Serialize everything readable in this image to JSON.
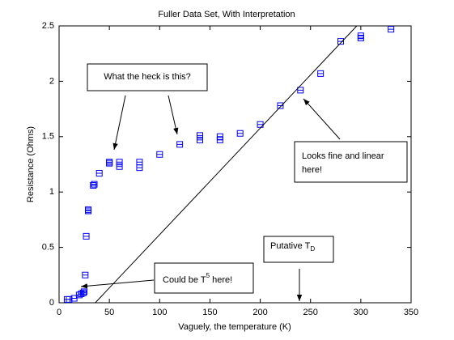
{
  "chart_data": {
    "type": "scatter",
    "title": "Fuller Data Set, With Interpretation",
    "x_label": "Vaguely, the temperature (K)",
    "y_label": "Resistance (Ohms)",
    "xlim": [
      0,
      350
    ],
    "xticks": [
      0,
      50,
      100,
      150,
      200,
      250,
      300,
      350
    ],
    "ylim": [
      0,
      2.5
    ],
    "yticks": [
      0,
      0.5,
      1,
      1.5,
      2,
      2.5
    ],
    "series": [
      {
        "color": "#0000ff",
        "marker": "square",
        "x": [
          8,
          10,
          15,
          20,
          22,
          24,
          25,
          26,
          27,
          29,
          29,
          34,
          35,
          40,
          50,
          50,
          60,
          60,
          80,
          80,
          100,
          120,
          140,
          140,
          160,
          160,
          180,
          200,
          220,
          240,
          260,
          280,
          300,
          300,
          330
        ],
        "values": [
          0.03,
          0.03,
          0.04,
          0.07,
          0.08,
          0.09,
          0.1,
          0.25,
          0.6,
          0.84,
          0.83,
          1.06,
          1.07,
          1.17,
          1.27,
          1.26,
          1.23,
          1.27,
          1.22,
          1.27,
          1.34,
          1.43,
          1.47,
          1.51,
          1.47,
          1.5,
          1.53,
          1.61,
          1.78,
          1.92,
          2.07,
          2.36,
          2.39,
          2.41,
          2.47
        ]
      },
      {
        "color": "#000000",
        "marker": "none",
        "style": "line",
        "x": [
          36,
          296
        ],
        "values": [
          0,
          2.5
        ]
      }
    ],
    "annotations": {
      "heck": "What the heck is this?",
      "linear": [
        "Looks fine and linear",
        "here!"
      ],
      "t5": [
        "Could be T",
        "5",
        " here!"
      ],
      "td": [
        "Putative T",
        "D"
      ]
    }
  }
}
